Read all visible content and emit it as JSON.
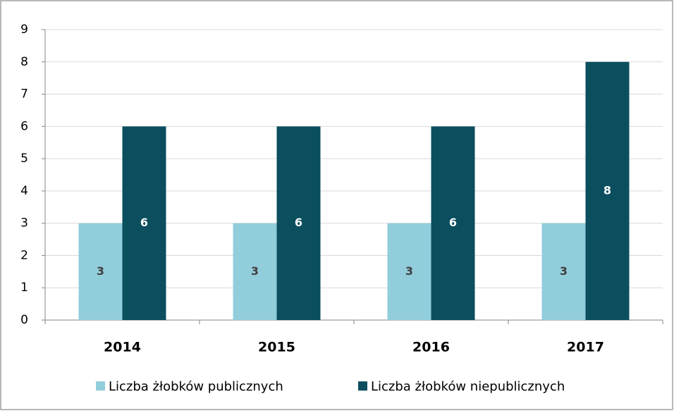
{
  "chart_data": {
    "type": "bar",
    "categories": [
      "2014",
      "2015",
      "2016",
      "2017"
    ],
    "series": [
      {
        "name": "Liczba żłobków publicznych",
        "color": "#92cddc",
        "label_color": "#404040",
        "values": [
          3,
          3,
          3,
          3
        ]
      },
      {
        "name": "Liczba żłobków niepublicznych",
        "color": "#0b4f5f",
        "label_color": "#ffffff",
        "values": [
          6,
          6,
          6,
          8
        ]
      }
    ],
    "ylim": [
      0,
      9
    ],
    "yticks": [
      0,
      1,
      2,
      3,
      4,
      5,
      6,
      7,
      8,
      9
    ],
    "grid": true,
    "legend": "bottom",
    "data_labels": true
  }
}
